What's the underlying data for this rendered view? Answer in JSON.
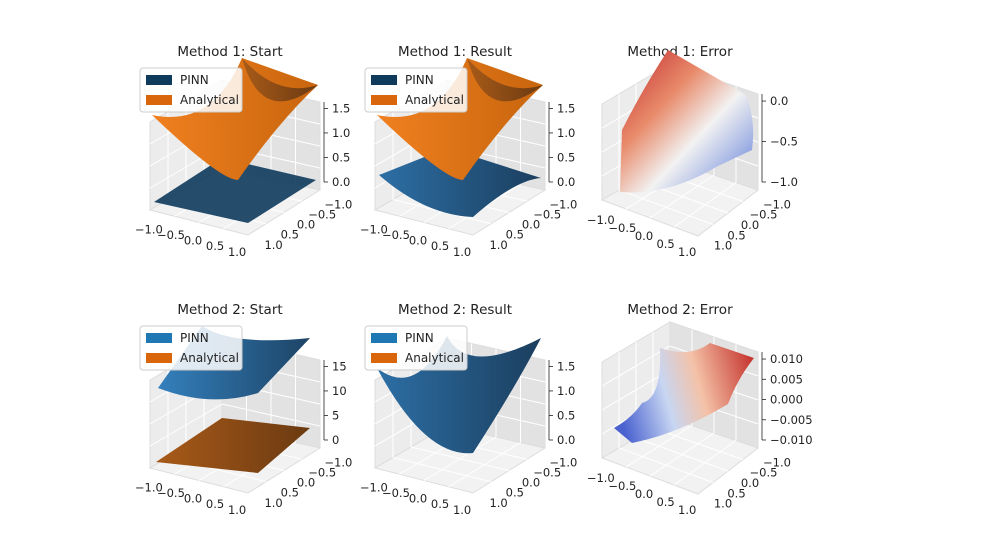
{
  "figure": {
    "background": "#ffffff",
    "colors": {
      "pinn_start1": "#0e3a5c",
      "pinn": "#1f77b4",
      "analytical": "#ff7f0e",
      "analytical_legend": "#d9660b",
      "coolwarm_low": "#3b4cc0",
      "coolwarm_mid": "#f2f2f2",
      "coolwarm_high": "#b40426"
    }
  },
  "chart_data": [
    {
      "id": "m1-start",
      "type": "surface3d",
      "title": "Method 1: Start",
      "legend": [
        "PINN",
        "Analytical"
      ],
      "legend_placement": "upper-left",
      "xticks": [
        "−1.0",
        "−0.5",
        "0.0",
        "0.5",
        "1.0"
      ],
      "yticks": [
        "−1.0",
        "−0.5",
        "0.0",
        "0.5",
        "1.0"
      ],
      "zticks": [
        "0.0",
        "0.5",
        "1.0",
        "1.5"
      ],
      "zlim": [
        0,
        1.5
      ],
      "xlim": [
        -1,
        1
      ],
      "ylim": [
        -1,
        1
      ],
      "series": [
        {
          "name": "PINN",
          "function": "constant",
          "value": 0.0
        },
        {
          "name": "Analytical",
          "function": "(x^2 + y^2) * 0.75"
        }
      ]
    },
    {
      "id": "m1-result",
      "type": "surface3d",
      "title": "Method 1: Result",
      "legend": [
        "PINN",
        "Analytical"
      ],
      "legend_placement": "upper-left",
      "xticks": [
        "−1.0",
        "−0.5",
        "0.0",
        "0.5",
        "1.0"
      ],
      "yticks": [
        "−1.0",
        "−0.5",
        "0.0",
        "0.5",
        "1.0"
      ],
      "zticks": [
        "0.0",
        "0.5",
        "1.0",
        "1.5"
      ],
      "zlim": [
        0,
        1.5
      ],
      "xlim": [
        -1,
        1
      ],
      "ylim": [
        -1,
        1
      ],
      "series": [
        {
          "name": "PINN",
          "function": "paraboloid_partial"
        },
        {
          "name": "Analytical",
          "function": "(x^2 + y^2) * 0.75"
        }
      ]
    },
    {
      "id": "m1-error",
      "type": "surface3d",
      "title": "Method 1: Error",
      "colormap": "coolwarm",
      "xticks": [
        "−1.0",
        "−0.5",
        "0.0",
        "0.5",
        "1.0"
      ],
      "yticks": [
        "−1.0",
        "−0.5",
        "0.0",
        "0.5",
        "1.0"
      ],
      "zticks": [
        "−1.0",
        "−0.5",
        "0.0"
      ],
      "zlim": [
        -1.5,
        0
      ],
      "xlim": [
        -1,
        1
      ],
      "ylim": [
        -1,
        1
      ]
    },
    {
      "id": "m2-start",
      "type": "surface3d",
      "title": "Method 2: Start",
      "legend": [
        "PINN",
        "Analytical"
      ],
      "legend_placement": "upper-left",
      "xticks": [
        "−1.0",
        "−0.5",
        "0.0",
        "0.5",
        "1.0"
      ],
      "yticks": [
        "−1.0",
        "−0.5",
        "0.0",
        "0.5",
        "1.0"
      ],
      "zticks": [
        "0",
        "5",
        "10",
        "15"
      ],
      "zlim": [
        0,
        18
      ],
      "xlim": [
        -1,
        1
      ],
      "ylim": [
        -1,
        1
      ],
      "series": [
        {
          "name": "PINN",
          "function": "15 + 1.5 * (x^2 + y^2)"
        },
        {
          "name": "Analytical",
          "function": "(x^2 + y^2) * 0.75"
        }
      ]
    },
    {
      "id": "m2-result",
      "type": "surface3d",
      "title": "Method 2: Result",
      "legend": [
        "PINN",
        "Analytical"
      ],
      "legend_placement": "upper-left",
      "xticks": [
        "−1.0",
        "−0.5",
        "0.0",
        "0.5",
        "1.0"
      ],
      "yticks": [
        "−1.0",
        "−0.5",
        "0.0",
        "0.5",
        "1.0"
      ],
      "zticks": [
        "0.0",
        "0.5",
        "1.0",
        "1.5"
      ],
      "zlim": [
        0,
        1.5
      ],
      "xlim": [
        -1,
        1
      ],
      "ylim": [
        -1,
        1
      ],
      "series": [
        {
          "name": "PINN",
          "function": "(x^2 + y^2) * 0.75"
        },
        {
          "name": "Analytical",
          "function": "(x^2 + y^2) * 0.75"
        }
      ]
    },
    {
      "id": "m2-error",
      "type": "surface3d",
      "title": "Method 2: Error",
      "colormap": "coolwarm",
      "xticks": [
        "−1.0",
        "−0.5",
        "0.0",
        "0.5",
        "1.0"
      ],
      "yticks": [
        "−1.0",
        "−0.5",
        "0.0",
        "0.5",
        "1.0"
      ],
      "zticks": [
        "−0.010",
        "−0.005",
        "0.000",
        "0.005",
        "0.010"
      ],
      "zlim": [
        -0.012,
        0.012
      ],
      "xlim": [
        -1,
        1
      ],
      "ylim": [
        -1,
        1
      ]
    }
  ]
}
